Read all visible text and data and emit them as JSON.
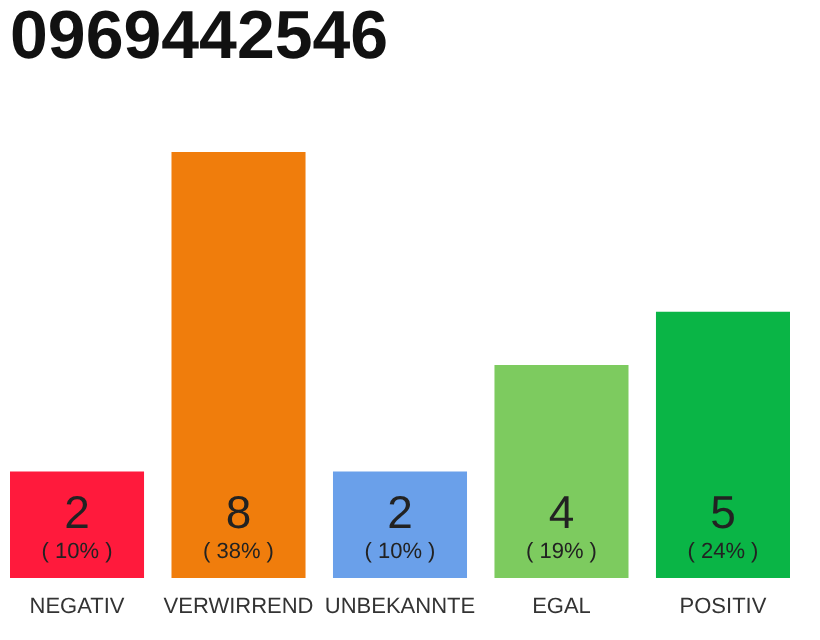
{
  "chart_data": {
    "type": "bar",
    "title": "0969442546",
    "categories": [
      "NEGATIV",
      "VERWIRREND",
      "UNBEKANNTE",
      "EGAL",
      "POSITIV"
    ],
    "values": [
      2,
      8,
      2,
      4,
      5
    ],
    "colors": [
      "#ff1a3c",
      "#f07d0c",
      "#6aa0ea",
      "#7dcb5f",
      "#0ab546"
    ],
    "annotations": [
      "( 10% )",
      "( 38% )",
      "( 10% )",
      "( 19% )",
      "( 24% )"
    ],
    "data_labels": true,
    "tick_labels": "x"
  }
}
